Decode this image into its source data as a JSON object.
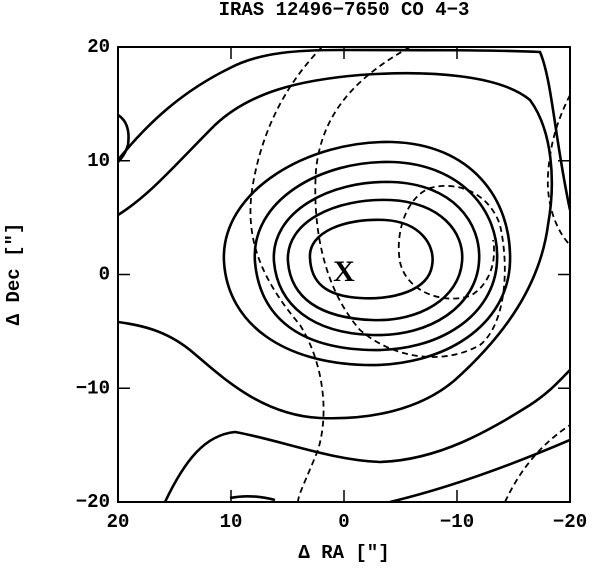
{
  "chart_data": {
    "type": "contour",
    "title": "IRAS 12496−7650 CO 4−3",
    "x_label": "Δ RA [″]",
    "y_label": "Δ Dec [″]",
    "annotation": "X",
    "xlim": [
      20,
      -20
    ],
    "ylim": [
      -20,
      20
    ],
    "xticks": [
      20,
      10,
      0,
      {
        "value": -10,
        "label": "−10"
      },
      {
        "value": -20,
        "label": "−20"
      }
    ],
    "yticks": [
      {
        "value": -20,
        "label": "−20"
      },
      {
        "value": -10,
        "label": "−10"
      },
      0,
      10,
      20
    ]
  }
}
